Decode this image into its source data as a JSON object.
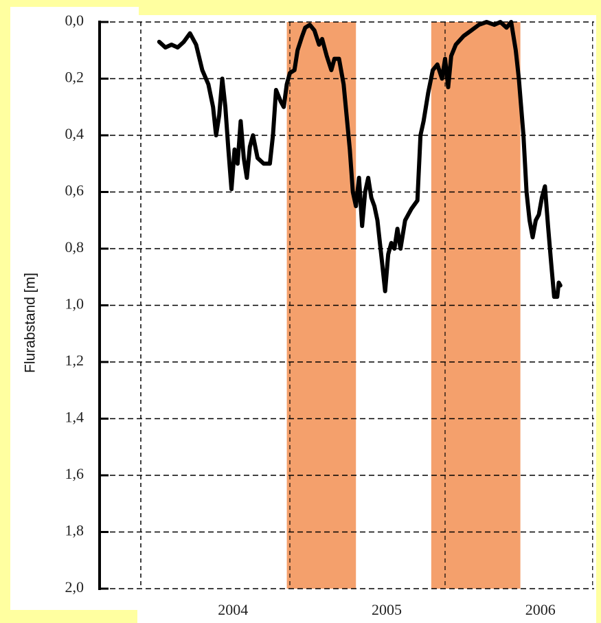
{
  "chart_data": {
    "type": "line",
    "y_label": "Flurabstand [m]",
    "ylim": [
      2,
      0
    ],
    "yticks": [
      {
        "value": 0,
        "label": "0,0"
      },
      {
        "value": 0.2,
        "label": "0,2"
      },
      {
        "value": 0.4,
        "label": "0,4"
      },
      {
        "value": 0.6,
        "label": "0,6"
      },
      {
        "value": 0.8,
        "label": "0,8"
      },
      {
        "value": 1,
        "label": "1,0"
      },
      {
        "value": 1.2,
        "label": "1,2"
      },
      {
        "value": 1.4,
        "label": "1,4"
      },
      {
        "value": 1.6,
        "label": "1,6"
      },
      {
        "value": 1.8,
        "label": "1,8"
      },
      {
        "value": 2,
        "label": "2,0"
      }
    ],
    "xlim": [
      2003.4,
      2006.35
    ],
    "xticks": [
      2004,
      2005,
      2006
    ],
    "xgrid": [
      2004.37,
      2005.38,
      2006.34
    ],
    "grid": true,
    "shaded_ranges": [
      [
        2004.35,
        2004.8
      ],
      [
        2005.29,
        2005.87
      ]
    ],
    "shade_color": "#f4a06c",
    "color": "#000000",
    "x": [
      2003.52,
      2003.56,
      2003.6,
      2003.64,
      2003.68,
      2003.72,
      2003.76,
      2003.8,
      2003.84,
      2003.87,
      2003.89,
      2003.91,
      2003.93,
      2003.95,
      2003.97,
      2003.99,
      2004.01,
      2004.03,
      2004.05,
      2004.07,
      2004.09,
      2004.11,
      2004.13,
      2004.16,
      2004.2,
      2004.24,
      2004.26,
      2004.28,
      2004.31,
      2004.33,
      2004.35,
      2004.37,
      2004.4,
      2004.42,
      2004.45,
      2004.47,
      2004.5,
      2004.53,
      2004.56,
      2004.58,
      2004.61,
      2004.64,
      2004.66,
      2004.69,
      2004.72,
      2004.76,
      2004.78,
      2004.8,
      2004.82,
      2004.84,
      2004.86,
      2004.88,
      2004.9,
      2004.92,
      2004.94,
      2004.97,
      2004.99,
      2005.01,
      2005.03,
      2005.05,
      2005.07,
      2005.09,
      2005.12,
      2005.16,
      2005.2,
      2005.22,
      2005.24,
      2005.27,
      2005.3,
      2005.33,
      2005.36,
      2005.38,
      2005.4,
      2005.42,
      2005.45,
      2005.5,
      2005.55,
      2005.6,
      2005.65,
      2005.7,
      2005.74,
      2005.78,
      2005.81,
      2005.84,
      2005.86,
      2005.89,
      2005.91,
      2005.93,
      2005.95,
      2005.97,
      2005.99,
      2006.01,
      2006.03,
      2006.05,
      2006.07,
      2006.09,
      2006.11,
      2006.12,
      2006.13
    ],
    "values": [
      0.07,
      0.09,
      0.08,
      0.09,
      0.07,
      0.04,
      0.08,
      0.17,
      0.22,
      0.3,
      0.4,
      0.33,
      0.2,
      0.3,
      0.45,
      0.59,
      0.45,
      0.5,
      0.35,
      0.48,
      0.55,
      0.44,
      0.4,
      0.48,
      0.5,
      0.5,
      0.4,
      0.24,
      0.28,
      0.3,
      0.22,
      0.18,
      0.17,
      0.1,
      0.05,
      0.02,
      0.01,
      0.03,
      0.08,
      0.06,
      0.12,
      0.17,
      0.13,
      0.13,
      0.22,
      0.45,
      0.6,
      0.65,
      0.55,
      0.72,
      0.6,
      0.55,
      0.62,
      0.65,
      0.7,
      0.85,
      0.95,
      0.82,
      0.78,
      0.8,
      0.73,
      0.8,
      0.7,
      0.66,
      0.63,
      0.4,
      0.35,
      0.25,
      0.17,
      0.15,
      0.2,
      0.13,
      0.23,
      0.12,
      0.08,
      0.05,
      0.03,
      0.01,
      0,
      0.01,
      0,
      0.02,
      0,
      0.1,
      0.2,
      0.4,
      0.6,
      0.7,
      0.76,
      0.7,
      0.68,
      0.62,
      0.58,
      0.72,
      0.85,
      0.97,
      0.97,
      0.92,
      0.93
    ]
  }
}
